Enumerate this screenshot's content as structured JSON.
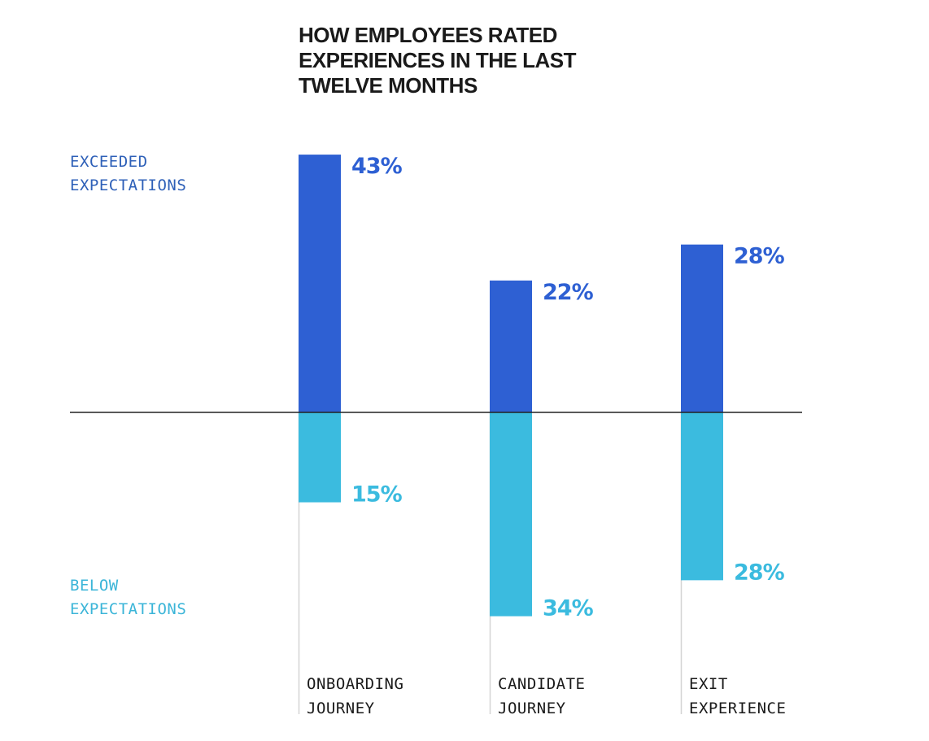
{
  "chart_data": {
    "type": "bar",
    "title": "HOW EMPLOYEES RATED EXPERIENCES IN THE LAST TWELVE MONTHS",
    "title_lines": [
      "HOW EMPLOYEES RATED",
      "EXPERIENCES IN THE LAST",
      "TWELVE MONTHS"
    ],
    "categories": [
      "ONBOARDING JOURNEY",
      "CANDIDATE JOURNEY",
      "EXIT EXPERIENCE"
    ],
    "category_lines": [
      [
        "ONBOARDING",
        "JOURNEY"
      ],
      [
        "CANDIDATE",
        "JOURNEY"
      ],
      [
        "EXIT",
        "EXPERIENCE"
      ]
    ],
    "series": [
      {
        "name": "EXCEEDED EXPECTATIONS",
        "name_lines": [
          "EXCEEDED",
          "EXPECTATIONS"
        ],
        "values": [
          43,
          22,
          28
        ],
        "color": "#2e60d3",
        "direction": "up"
      },
      {
        "name": "BELOW EXPECTATIONS",
        "name_lines": [
          "BELOW",
          "EXPECTATIONS"
        ],
        "values": [
          15,
          34,
          28
        ],
        "color": "#3bbbdf",
        "direction": "down"
      }
    ],
    "value_suffix": "%",
    "xlabel": "",
    "ylabel": "",
    "ylim": [
      -34,
      43
    ],
    "grid": false,
    "legend": "left"
  }
}
